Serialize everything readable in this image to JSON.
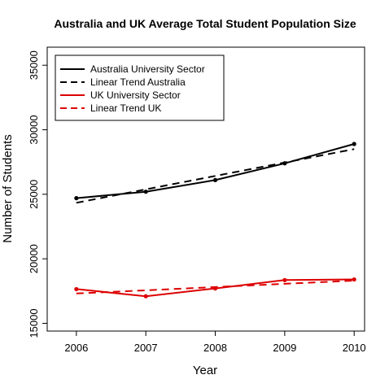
{
  "chart_data": {
    "type": "line",
    "title": "Australia and UK Average Total Student Population Size",
    "xlabel": "Year",
    "ylabel": "Number of Students",
    "x": [
      2006,
      2007,
      2008,
      2009,
      2010
    ],
    "xlim": [
      2005.58,
      2010.15
    ],
    "ylim": [
      14400,
      36400
    ],
    "xticks": [
      "2006",
      "2007",
      "2008",
      "2009",
      "2010"
    ],
    "yticks": [
      "15000",
      "20000",
      "25000",
      "30000",
      "35000"
    ],
    "grid": false,
    "legend_position": "top-left",
    "series": [
      {
        "name": "Australia University Sector",
        "values": [
          24700,
          25200,
          26100,
          27400,
          28900
        ],
        "color": "#000000",
        "dash": "solid",
        "markers": true
      },
      {
        "name": "Linear Trend Australia",
        "values": [
          24340,
          25380,
          26420,
          27460,
          28500
        ],
        "color": "#000000",
        "dash": "dashed",
        "markers": false
      },
      {
        "name": "UK University Sector",
        "values": [
          17650,
          17100,
          17700,
          18350,
          18400
        ],
        "color": "#dd0000",
        "dash": "solid",
        "markers": true
      },
      {
        "name": "Linear Trend UK",
        "values": [
          17310,
          17560,
          17810,
          18060,
          18310
        ],
        "color": "#dd0000",
        "dash": "dashed",
        "markers": false
      }
    ]
  }
}
